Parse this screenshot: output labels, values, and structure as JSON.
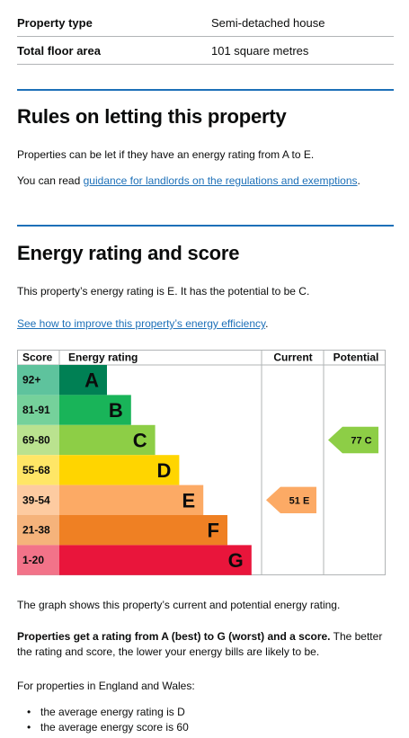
{
  "summary": {
    "property_type_label": "Property type",
    "property_type_value": "Semi-detached house",
    "floor_area_label": "Total floor area",
    "floor_area_value": "101 square metres"
  },
  "letting": {
    "heading": "Rules on letting this property",
    "text": "Properties can be let if they have an energy rating from A to E.",
    "read_prefix": "You can read ",
    "read_link": "guidance for landlords on the regulations and exemptions",
    "read_suffix": "."
  },
  "energy": {
    "heading": "Energy rating and score",
    "text": "This property’s energy rating is E. It has the potential to be C.",
    "improve_link": "See how to improve this property’s energy efficiency",
    "improve_suffix": ".",
    "graph_text": "The graph shows this property’s current and potential energy rating.",
    "bold_text": "Properties get a rating from A (best) to G (worst) and a score.",
    "rest_text": " The better the rating and score, the lower your energy bills are likely to be.",
    "regional_intro": "For properties in England and Wales:",
    "bullets": [
      "the average energy rating is D",
      "the average energy score is 60"
    ]
  },
  "chart_data": {
    "type": "bar",
    "headers": {
      "score": "Score",
      "rating": "Energy rating",
      "current": "Current",
      "potential": "Potential"
    },
    "bands": [
      {
        "score": "92+",
        "letter": "A",
        "color": "#008054",
        "light": "#5ec39d"
      },
      {
        "score": "81-91",
        "letter": "B",
        "color": "#19b459",
        "light": "#75d19b"
      },
      {
        "score": "69-80",
        "letter": "C",
        "color": "#8dce46",
        "light": "#bae28f"
      },
      {
        "score": "55-68",
        "letter": "D",
        "color": "#ffd500",
        "light": "#ffe666"
      },
      {
        "score": "39-54",
        "letter": "E",
        "color": "#fcaa65",
        "light": "#fdcba1"
      },
      {
        "score": "21-38",
        "letter": "F",
        "color": "#ef8023",
        "light": "#f5b37b"
      },
      {
        "score": "1-20",
        "letter": "G",
        "color": "#e9153b",
        "light": "#f27389"
      }
    ],
    "current": {
      "label": "51 E",
      "score": 51,
      "band": "E",
      "color": "#fcaa65"
    },
    "potential": {
      "label": "77 C",
      "score": 77,
      "band": "C",
      "color": "#8dce46"
    }
  }
}
